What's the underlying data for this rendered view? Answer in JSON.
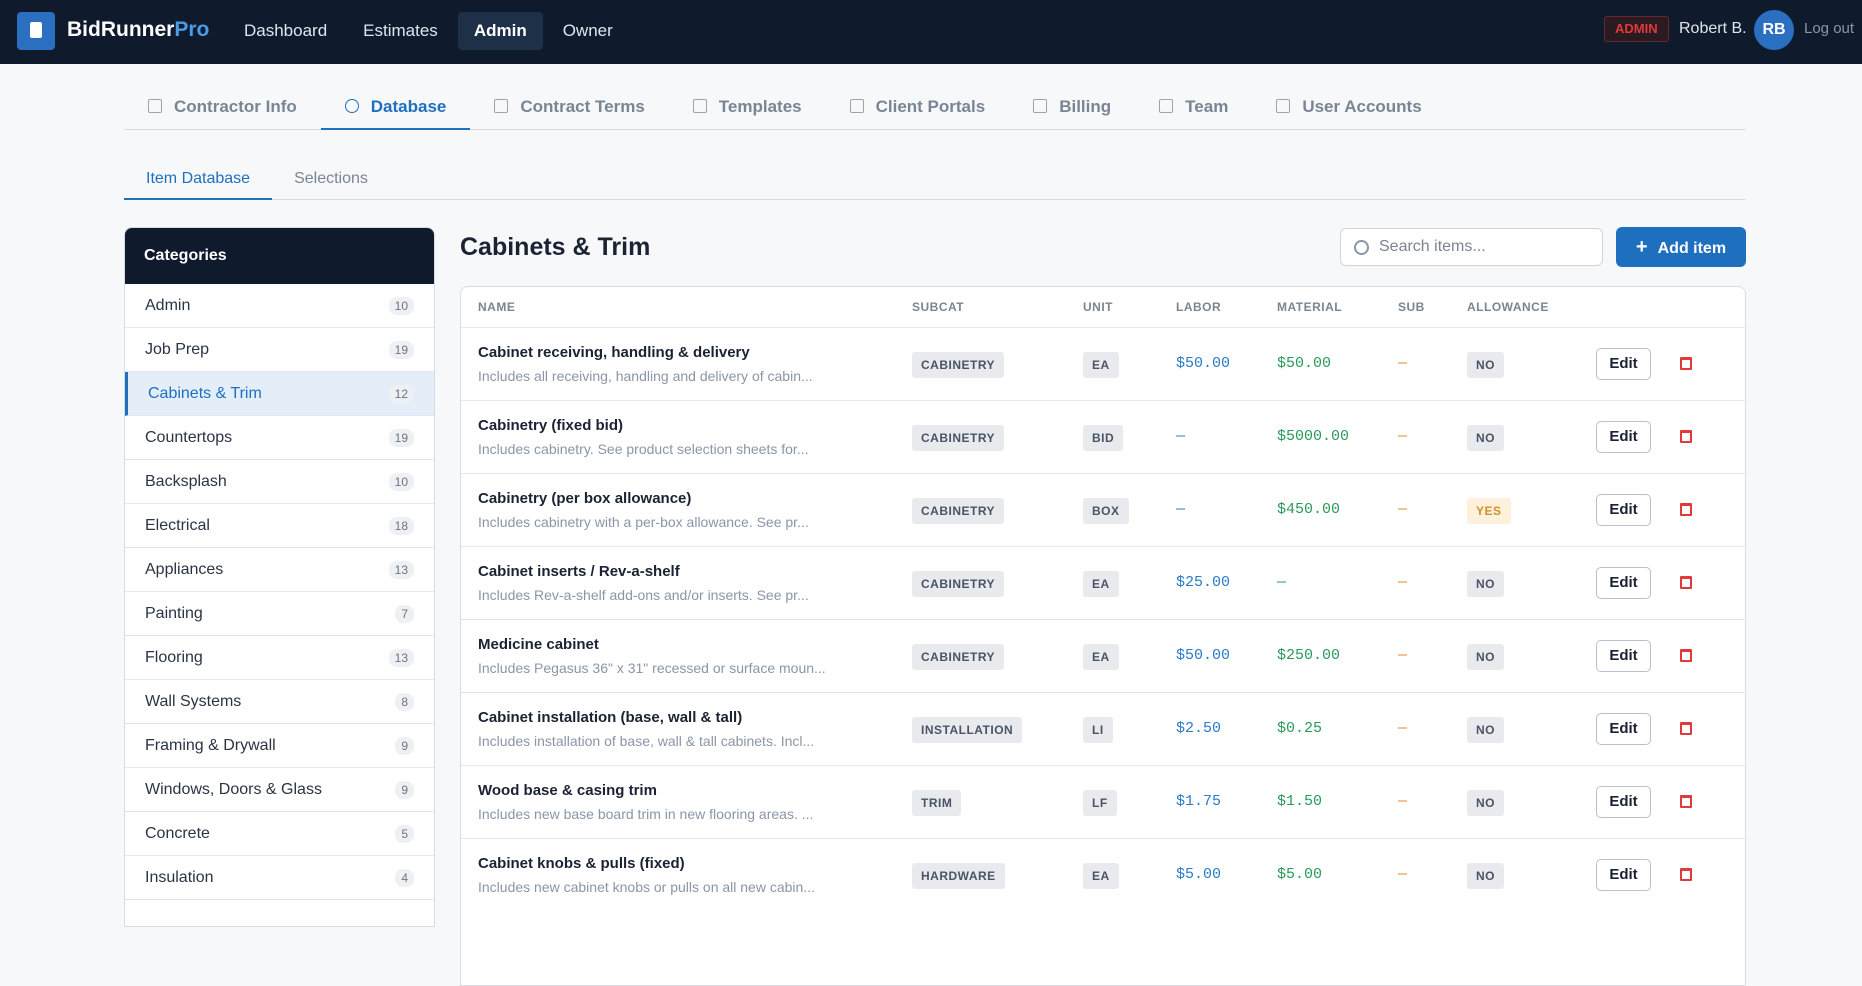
{
  "header": {
    "brand": "BidRunner",
    "brand_accent": "Pro",
    "nav": [
      "Dashboard",
      "Estimates",
      "Admin",
      "Owner"
    ],
    "role": "ADMIN",
    "user": "Robert B.",
    "initials": "RB",
    "logout": "Log out"
  },
  "tabs": [
    "Contractor Info",
    "Database",
    "Contract Terms",
    "Templates",
    "Client Portals",
    "Billing",
    "Team",
    "User Accounts"
  ],
  "subtabs": [
    "Item Database",
    "Selections"
  ],
  "sidebar": {
    "title": "Categories",
    "items": [
      {
        "label": "Admin",
        "count": 10
      },
      {
        "label": "Job Prep",
        "count": 19
      },
      {
        "label": "Cabinets & Trim",
        "count": 12
      },
      {
        "label": "Countertops",
        "count": 19
      },
      {
        "label": "Backsplash",
        "count": 10
      },
      {
        "label": "Electrical",
        "count": 18
      },
      {
        "label": "Appliances",
        "count": 13
      },
      {
        "label": "Painting",
        "count": 7
      },
      {
        "label": "Flooring",
        "count": 13
      },
      {
        "label": "Wall Systems",
        "count": 8
      },
      {
        "label": "Framing & Drywall",
        "count": 9
      },
      {
        "label": "Windows, Doors & Glass",
        "count": 9
      },
      {
        "label": "Concrete",
        "count": 5
      },
      {
        "label": "Insulation",
        "count": 4
      }
    ]
  },
  "main": {
    "title": "Cabinets & Trim",
    "search_placeholder": "Search items...",
    "add_button": "Add item",
    "edit_label": "Edit",
    "columns": [
      "NAME",
      "SUBCAT",
      "UNIT",
      "LABOR",
      "MATERIAL",
      "SUB",
      "ALLOWANCE"
    ],
    "rows": [
      {
        "name": "Cabinet receiving, handling & delivery",
        "description": "Includes all receiving, handling and delivery of cabin...",
        "subcat": "CABINETRY",
        "unit": "EA",
        "labor": "$50.00",
        "material": "$50.00",
        "sub": "—",
        "allowance": "NO"
      },
      {
        "name": "Cabinetry (fixed bid)",
        "description": "Includes cabinetry. See product selection sheets for...",
        "subcat": "CABINETRY",
        "unit": "BID",
        "labor": "—",
        "material": "$5000.00",
        "sub": "—",
        "allowance": "NO"
      },
      {
        "name": "Cabinetry (per box allowance)",
        "description": "Includes cabinetry with a per-box allowance. See pr...",
        "subcat": "CABINETRY",
        "unit": "BOX",
        "labor": "—",
        "material": "$450.00",
        "sub": "—",
        "allowance": "YES"
      },
      {
        "name": "Cabinet inserts / Rev-a-shelf",
        "description": "Includes Rev-a-shelf add-ons and/or inserts. See pr...",
        "subcat": "CABINETRY",
        "unit": "EA",
        "labor": "$25.00",
        "material": "—",
        "sub": "—",
        "allowance": "NO"
      },
      {
        "name": "Medicine cabinet",
        "description": "Includes Pegasus 36\" x 31\" recessed or surface moun...",
        "subcat": "CABINETRY",
        "unit": "EA",
        "labor": "$50.00",
        "material": "$250.00",
        "sub": "—",
        "allowance": "NO"
      },
      {
        "name": "Cabinet installation (base, wall & tall)",
        "description": "Includes installation of base, wall & tall cabinets. Incl...",
        "subcat": "INSTALLATION",
        "unit": "LI",
        "labor": "$2.50",
        "material": "$0.25",
        "sub": "—",
        "allowance": "NO"
      },
      {
        "name": "Wood base & casing trim",
        "description": "Includes new base board trim in new flooring areas. ...",
        "subcat": "TRIM",
        "unit": "LF",
        "labor": "$1.75",
        "material": "$1.50",
        "sub": "—",
        "allowance": "NO"
      },
      {
        "name": "Cabinet knobs & pulls (fixed)",
        "description": "Includes new cabinet knobs or pulls on all new cabin...",
        "subcat": "HARDWARE",
        "unit": "EA",
        "labor": "$5.00",
        "material": "$5.00",
        "sub": "—",
        "allowance": "NO"
      }
    ]
  }
}
